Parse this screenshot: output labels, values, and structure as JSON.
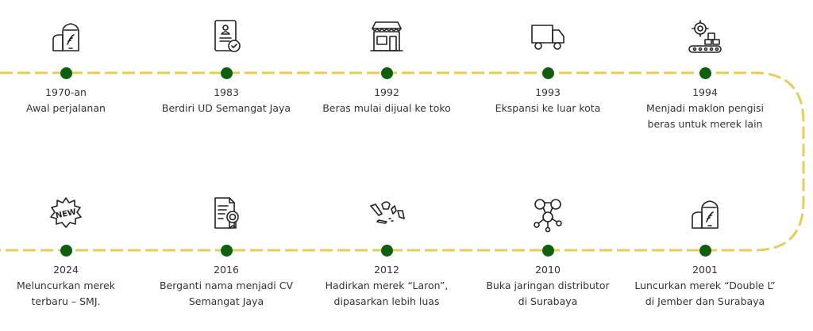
{
  "colors": {
    "line": "#e6cc5a",
    "dot": "#0f5f0f",
    "text": "#333333"
  },
  "milestones": [
    {
      "year": "1970-an",
      "lines": [
        "Awal perjalanan"
      ],
      "icon": "rice-sack-icon"
    },
    {
      "year": "1983",
      "lines": [
        "Berdiri UD Semangat Jaya"
      ],
      "icon": "certificate-user-icon"
    },
    {
      "year": "1992",
      "lines": [
        "Beras mulai dijual ke toko"
      ],
      "icon": "shop-icon"
    },
    {
      "year": "1993",
      "lines": [
        "Ekspansi ke luar kota"
      ],
      "icon": "truck-icon"
    },
    {
      "year": "1994",
      "lines": [
        "Menjadi maklon pengisi",
        "beras untuk merek lain"
      ],
      "icon": "factory-conveyor-icon"
    },
    {
      "year": "2001",
      "lines": [
        "Luncurkan merek “Double L”",
        "di Jember dan Surabaya"
      ],
      "icon": "rice-sack-icon"
    },
    {
      "year": "2010",
      "lines": [
        "Buka jaringan distributor",
        "di Surabaya"
      ],
      "icon": "network-icon"
    },
    {
      "year": "2012",
      "lines": [
        "Hadirkan merek “Laron”,",
        "dipasarkan lebih luas"
      ],
      "icon": "indonesia-map-icon"
    },
    {
      "year": "2016",
      "lines": [
        "Berganti nama menjadi CV",
        "Semangat Jaya"
      ],
      "icon": "award-document-icon"
    },
    {
      "year": "2024",
      "lines": [
        "Meluncurkan merek",
        "terbaru – SMJ."
      ],
      "icon": "new-badge-icon"
    }
  ]
}
